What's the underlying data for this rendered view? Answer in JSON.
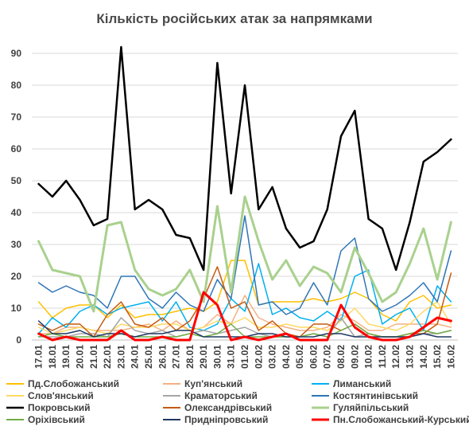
{
  "chart_data": {
    "type": "line",
    "title": "Кількість російських атак за напрямками",
    "xlabel": "",
    "ylabel": "",
    "ylim": [
      0,
      95
    ],
    "yticks": [
      0,
      10,
      20,
      30,
      40,
      50,
      60,
      70,
      80,
      90
    ],
    "grid": true,
    "legend_position": "bottom",
    "x": [
      "17.01",
      "18.01",
      "19.01",
      "20.01",
      "21.01",
      "22.01",
      "23.01",
      "24.01",
      "25.01",
      "26.01",
      "27.01",
      "28.01",
      "29.01",
      "30.01",
      "31.01",
      "01.02",
      "02.02",
      "03.02",
      "04.02",
      "05.02",
      "06.02",
      "07.02",
      "08.02",
      "09.02",
      "10.02",
      "11.02",
      "12.02",
      "13.02",
      "14.02",
      "15.02",
      "16.02"
    ],
    "series": [
      {
        "name": "Пд.Слобожанський",
        "color": "#ffc000",
        "width": 1.5,
        "values": [
          12,
          7,
          10,
          11,
          11,
          7,
          11,
          7,
          8,
          8,
          9,
          10,
          9,
          12,
          25,
          25,
          11,
          12,
          12,
          12,
          13,
          12,
          13,
          15,
          13,
          8,
          6,
          12,
          14,
          10,
          11
        ]
      },
      {
        "name": "Куп'янський",
        "color": "#f4b183",
        "width": 1.5,
        "values": [
          2,
          2,
          4,
          4,
          3,
          3,
          3,
          4,
          5,
          3,
          6,
          3,
          4,
          8,
          5,
          14,
          7,
          5,
          4,
          3,
          3,
          4,
          8,
          6,
          3,
          3,
          5,
          5,
          5,
          5,
          4
        ]
      },
      {
        "name": "Лиманський",
        "color": "#00b0f0",
        "width": 1.5,
        "values": [
          2,
          7,
          4,
          9,
          11,
          8,
          10,
          11,
          12,
          6,
          12,
          4,
          3,
          5,
          13,
          9,
          24,
          8,
          10,
          7,
          6,
          9,
          6,
          20,
          22,
          5,
          8,
          10,
          3,
          17,
          12
        ]
      },
      {
        "name": "Слов'янський",
        "color": "#ffd966",
        "width": 1.5,
        "values": [
          4,
          2,
          3,
          4,
          3,
          2,
          5,
          4,
          4,
          5,
          5,
          3,
          4,
          6,
          5,
          7,
          4,
          4,
          5,
          4,
          4,
          3,
          6,
          10,
          5,
          4,
          3,
          5,
          9,
          12,
          5
        ]
      },
      {
        "name": "Краматорський",
        "color": "#a6a6a6",
        "width": 1.5,
        "values": [
          1,
          1,
          1,
          2,
          2,
          1,
          7,
          3,
          2,
          3,
          1,
          2,
          3,
          2,
          3,
          4,
          2,
          1,
          1,
          1,
          2,
          1,
          7,
          1,
          2,
          1,
          1,
          1,
          2,
          2,
          3
        ]
      },
      {
        "name": "Костянтинівський",
        "color": "#2e75b6",
        "width": 1.5,
        "values": [
          18,
          15,
          17,
          15,
          14,
          10,
          20,
          20,
          13,
          10,
          15,
          11,
          9,
          19,
          13,
          39,
          11,
          12,
          8,
          10,
          18,
          11,
          28,
          32,
          13,
          9,
          11,
          14,
          18,
          12,
          28
        ]
      },
      {
        "name": "Покровський",
        "color": "#000000",
        "width": 2.5,
        "values": [
          49,
          45,
          50,
          44,
          36,
          38,
          92,
          41,
          44,
          41,
          33,
          32,
          22,
          87,
          46,
          80,
          41,
          48,
          35,
          29,
          31,
          41,
          64,
          72,
          38,
          35,
          22,
          37,
          56,
          59,
          63
        ]
      },
      {
        "name": "Олександрівський",
        "color": "#c55a11",
        "width": 1.5,
        "values": [
          5,
          3,
          5,
          5,
          1,
          8,
          12,
          5,
          4,
          7,
          3,
          6,
          13,
          23,
          10,
          12,
          3,
          6,
          2,
          1,
          5,
          5,
          3,
          5,
          2,
          1,
          1,
          2,
          2,
          5,
          21
        ]
      },
      {
        "name": "Гуляйпільський",
        "color": "#a9d18e",
        "width": 3,
        "values": [
          31,
          22,
          21,
          20,
          9,
          36,
          37,
          22,
          16,
          14,
          16,
          22,
          12,
          42,
          15,
          45,
          31,
          19,
          25,
          17,
          23,
          21,
          15,
          29,
          21,
          12,
          15,
          24,
          35,
          19,
          37
        ]
      },
      {
        "name": "Оріхівський",
        "color": "#70ad47",
        "width": 1.5,
        "values": [
          1,
          2,
          1,
          1,
          1,
          1,
          2,
          1,
          1,
          1,
          1,
          2,
          1,
          2,
          5,
          1,
          1,
          1,
          1,
          1,
          2,
          1,
          3,
          5,
          2,
          1,
          1,
          2,
          3,
          2,
          3
        ]
      },
      {
        "name": "Придніпровський",
        "color": "#1f3864",
        "width": 1.5,
        "values": [
          6,
          2,
          2,
          3,
          1,
          2,
          2,
          1,
          2,
          2,
          3,
          3,
          1,
          1,
          1,
          1,
          2,
          2,
          1,
          1,
          1,
          2,
          2,
          1,
          1,
          1,
          1,
          1,
          2,
          1,
          1
        ]
      },
      {
        "name": "Пн.Слобожанський-Курський",
        "color": "#ff0000",
        "width": 3,
        "values": [
          2,
          0,
          1,
          0,
          0,
          0,
          3,
          0,
          0,
          1,
          0,
          0,
          15,
          11,
          0,
          1,
          0,
          1,
          2,
          0,
          0,
          0,
          11,
          4,
          1,
          0,
          0,
          1,
          4,
          7,
          6
        ]
      }
    ]
  }
}
